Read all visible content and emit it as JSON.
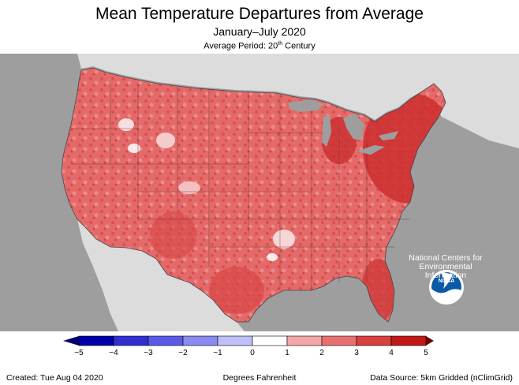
{
  "header": {
    "title": "Mean Temperature Departures from Average",
    "subtitle": "January–July 2020",
    "period_prefix": "Average Period: 20",
    "period_sup": "th",
    "period_suffix": " Century"
  },
  "map": {
    "region": "Contiguous United States",
    "background_color": "#9e9e9e",
    "land_outside_color": "#dcdcdc",
    "water_color": "#9e9e9e",
    "overall_anomaly_color": "#e06060"
  },
  "logo": {
    "name": "noaa-logo",
    "text": "NOAA",
    "caption_lines": [
      "National Centers for",
      "Environmental",
      "Information"
    ]
  },
  "legend": {
    "unit_label": "Degrees Fahrenheit",
    "ticks": [
      "−5",
      "−4",
      "−3",
      "−2",
      "−1",
      "0",
      "1",
      "2",
      "3",
      "4",
      "5"
    ],
    "colors": [
      "#0000a8",
      "#3030d0",
      "#5a5ae6",
      "#8a8af0",
      "#c0c0f8",
      "#ffffff",
      "#ffffff",
      "#f2a8a8",
      "#e87070",
      "#d84040",
      "#c01818"
    ],
    "arrow_low_color": "#00006e",
    "arrow_high_color": "#700000"
  },
  "footer": {
    "created": "Created: Tue Aug 04 2020",
    "source": "Data Source: 5km Gridded (nClimGrid)"
  }
}
